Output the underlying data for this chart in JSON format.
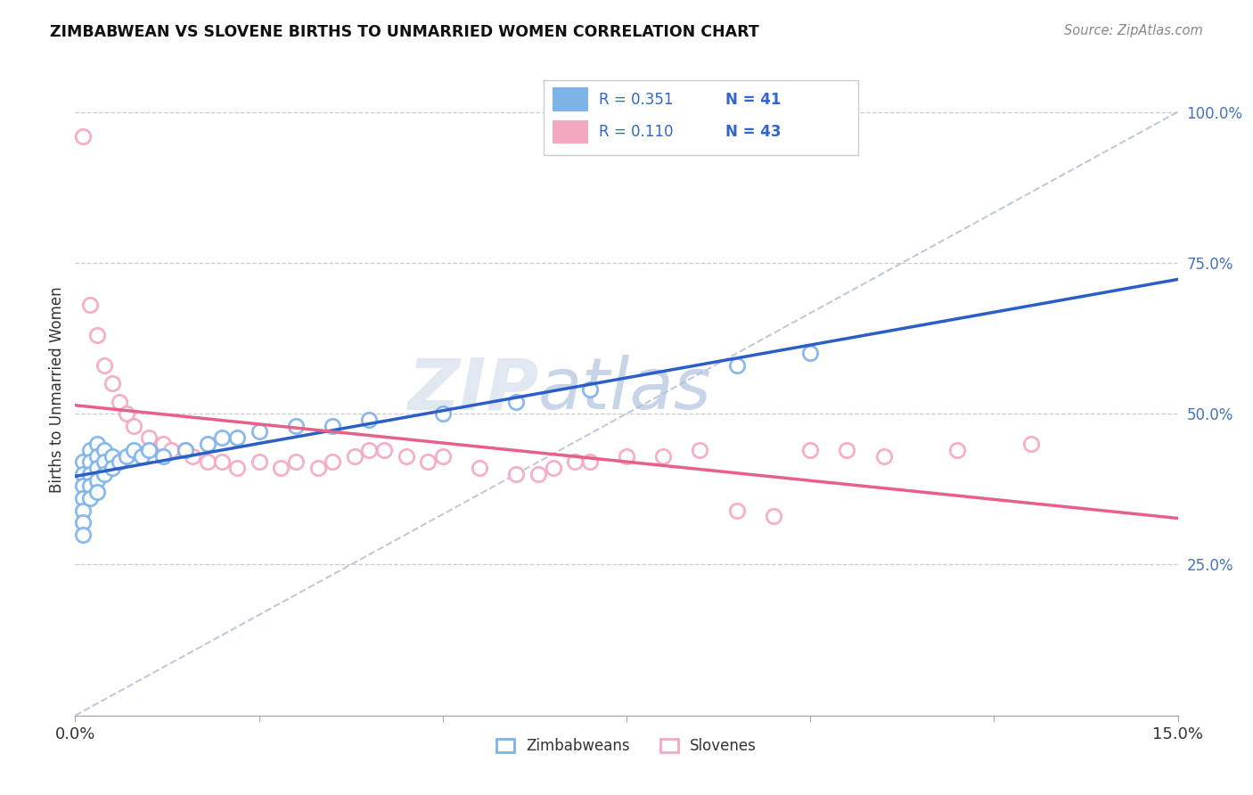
{
  "title": "ZIMBABWEAN VS SLOVENE BIRTHS TO UNMARRIED WOMEN CORRELATION CHART",
  "source": "Source: ZipAtlas.com",
  "ylabel": "Births to Unmarried Women",
  "xlim": [
    0.0,
    0.15
  ],
  "ylim": [
    0.0,
    1.08
  ],
  "xtick_vals": [
    0.0,
    0.025,
    0.05,
    0.075,
    0.1,
    0.125,
    0.15
  ],
  "xticklabels": [
    "0.0%",
    "",
    "",
    "",
    "",
    "",
    "15.0%"
  ],
  "yticks_right": [
    0.25,
    0.5,
    0.75,
    1.0
  ],
  "yticklabels_right": [
    "25.0%",
    "50.0%",
    "75.0%",
    "100.0%"
  ],
  "zim_color": "#7EB3E8",
  "slo_color": "#F4A8C0",
  "zim_line_color": "#2B5EC7",
  "slo_line_color": "#E8608A",
  "zim_R": 0.351,
  "zim_N": 41,
  "slo_R": 0.11,
  "slo_N": 43,
  "legend_label1": "Zimbabweans",
  "legend_label2": "Slovenes",
  "zim_x": [
    0.001,
    0.001,
    0.001,
    0.001,
    0.001,
    0.001,
    0.001,
    0.002,
    0.002,
    0.002,
    0.002,
    0.002,
    0.003,
    0.003,
    0.003,
    0.003,
    0.003,
    0.004,
    0.004,
    0.004,
    0.005,
    0.005,
    0.006,
    0.007,
    0.008,
    0.009,
    0.01,
    0.012,
    0.015,
    0.018,
    0.02,
    0.022,
    0.025,
    0.03,
    0.035,
    0.04,
    0.05,
    0.06,
    0.07,
    0.09,
    0.1
  ],
  "zim_y": [
    0.42,
    0.4,
    0.38,
    0.36,
    0.34,
    0.32,
    0.3,
    0.44,
    0.42,
    0.4,
    0.38,
    0.36,
    0.45,
    0.43,
    0.41,
    0.39,
    0.37,
    0.44,
    0.42,
    0.4,
    0.43,
    0.41,
    0.42,
    0.43,
    0.44,
    0.43,
    0.44,
    0.43,
    0.44,
    0.45,
    0.46,
    0.46,
    0.47,
    0.48,
    0.48,
    0.49,
    0.5,
    0.52,
    0.54,
    0.58,
    0.6
  ],
  "slo_x": [
    0.001,
    0.002,
    0.003,
    0.004,
    0.005,
    0.006,
    0.007,
    0.008,
    0.01,
    0.012,
    0.013,
    0.015,
    0.016,
    0.018,
    0.02,
    0.022,
    0.025,
    0.028,
    0.03,
    0.033,
    0.035,
    0.038,
    0.04,
    0.042,
    0.045,
    0.048,
    0.05,
    0.055,
    0.06,
    0.063,
    0.065,
    0.068,
    0.07,
    0.075,
    0.08,
    0.085,
    0.09,
    0.095,
    0.1,
    0.105,
    0.11,
    0.12,
    0.13
  ],
  "slo_y": [
    0.96,
    0.68,
    0.63,
    0.58,
    0.55,
    0.52,
    0.5,
    0.48,
    0.46,
    0.45,
    0.44,
    0.44,
    0.43,
    0.42,
    0.42,
    0.41,
    0.42,
    0.41,
    0.42,
    0.41,
    0.42,
    0.43,
    0.44,
    0.44,
    0.43,
    0.42,
    0.43,
    0.41,
    0.4,
    0.4,
    0.41,
    0.42,
    0.42,
    0.43,
    0.43,
    0.44,
    0.34,
    0.33,
    0.44,
    0.44,
    0.43,
    0.44,
    0.45
  ]
}
